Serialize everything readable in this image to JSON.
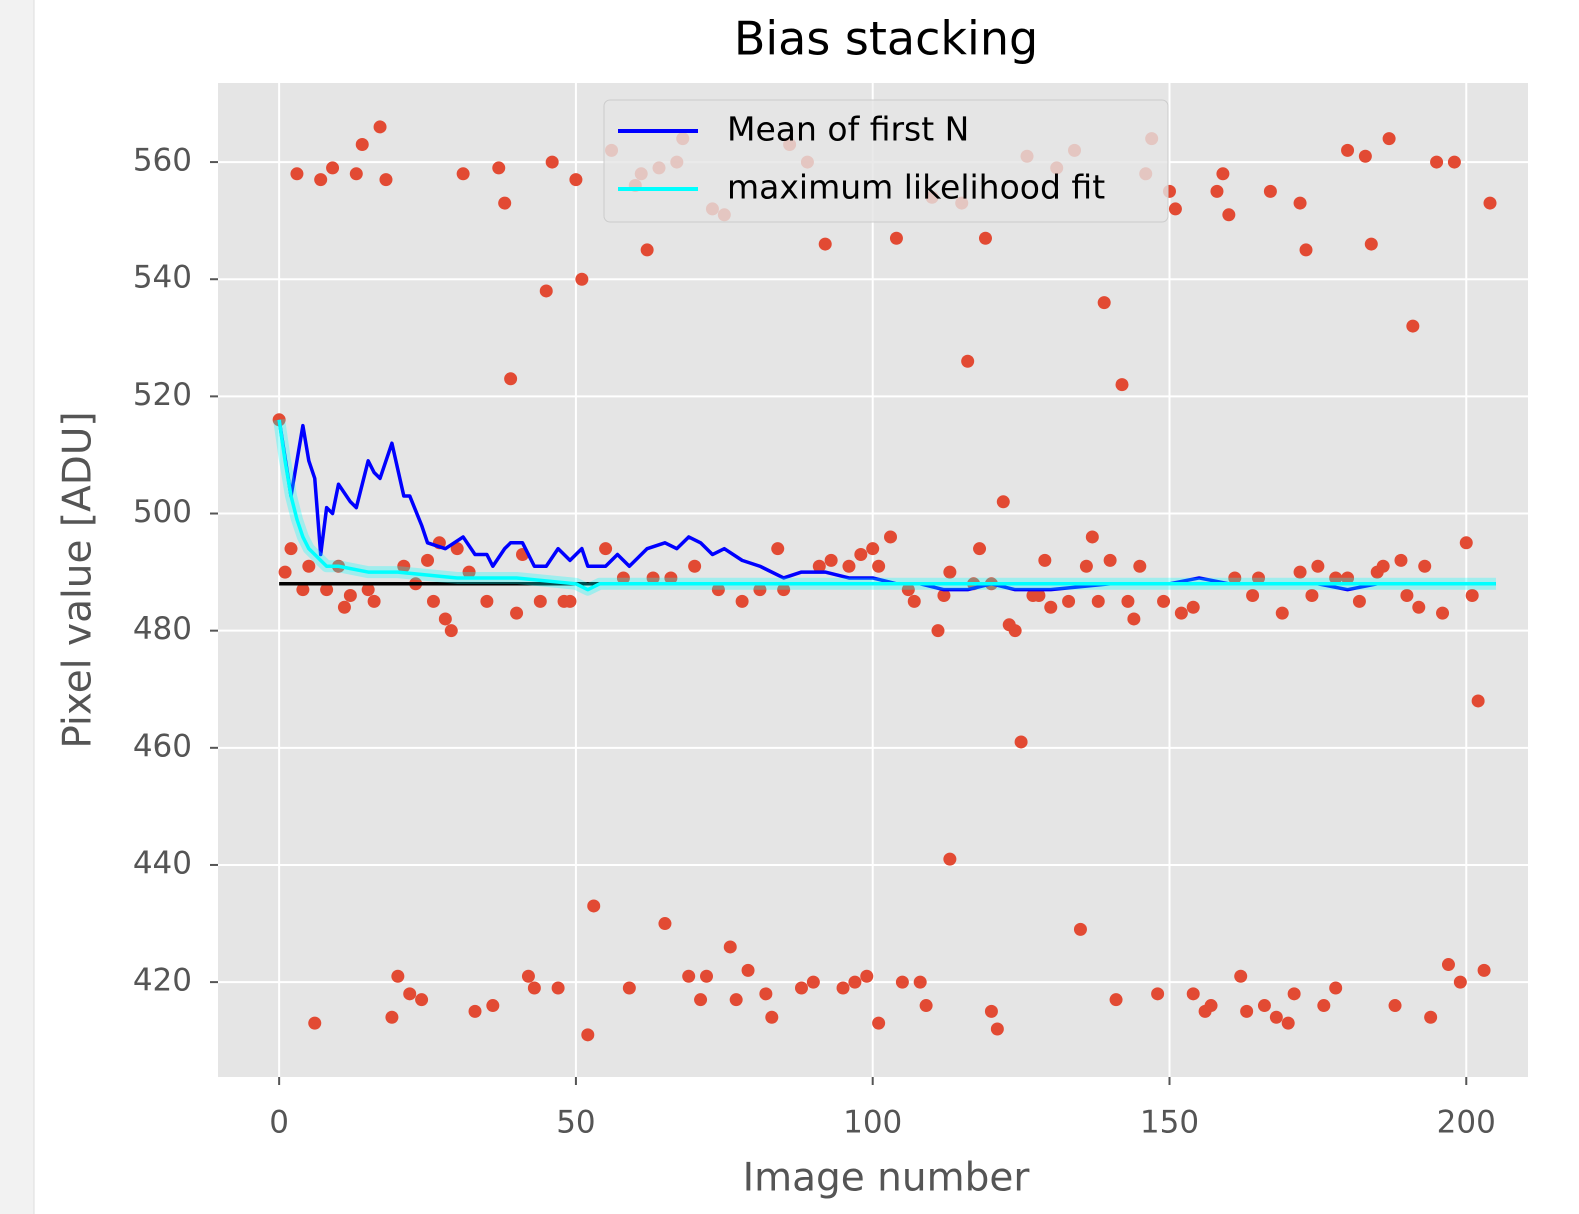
{
  "chart_data": {
    "type": "scatter",
    "title": "Bias stacking",
    "x_label": "Image number",
    "y_label": "Pixel value [ADU]",
    "xlim": [
      -10.3,
      210.4
    ],
    "ylim": [
      403.8,
      573.5
    ],
    "xticks": [
      0,
      50,
      100,
      150,
      200
    ],
    "yticks": [
      420,
      440,
      460,
      480,
      500,
      520,
      540,
      560
    ],
    "grid": true,
    "legend": "upper center",
    "series": [
      {
        "type": "scatter",
        "color": "#e24a33",
        "x": [
          3,
          7,
          9,
          13,
          14,
          17,
          18,
          31,
          37,
          38,
          39,
          45,
          46,
          50,
          51,
          56,
          60,
          61,
          62,
          64,
          67,
          68,
          73,
          75,
          86,
          89,
          92,
          104,
          110,
          115,
          116,
          119,
          126,
          131,
          134,
          139,
          142,
          146,
          147,
          150,
          151,
          158,
          159,
          160,
          167,
          172,
          173,
          180,
          183,
          184,
          187,
          191,
          195,
          198,
          204,
          0,
          1,
          2,
          4,
          5,
          8,
          10,
          11,
          12,
          15,
          16,
          21,
          23,
          25,
          26,
          27,
          28,
          29,
          30,
          32,
          35,
          40,
          41,
          44,
          48,
          49,
          55,
          58,
          63,
          66,
          70,
          74,
          78,
          81,
          84,
          85,
          91,
          93,
          96,
          98,
          100,
          101,
          103,
          106,
          107,
          111,
          112,
          113,
          117,
          118,
          120,
          122,
          123,
          124,
          127,
          128,
          129,
          130,
          133,
          136,
          137,
          138,
          140,
          143,
          144,
          145,
          149,
          152,
          154,
          161,
          164,
          165,
          169,
          172,
          175,
          174,
          178,
          180,
          182,
          185,
          186,
          189,
          190,
          192,
          193,
          196,
          200,
          201,
          202,
          125,
          113,
          135,
          53,
          65,
          6,
          19,
          20,
          22,
          24,
          33,
          36,
          42,
          43,
          47,
          52,
          59,
          69,
          71,
          72,
          76,
          77,
          79,
          82,
          83,
          88,
          90,
          95,
          97,
          99,
          101,
          105,
          108,
          109,
          120,
          121,
          141,
          148,
          154,
          156,
          157,
          162,
          163,
          166,
          168,
          170,
          171,
          176,
          178,
          188,
          194,
          197,
          199,
          203
        ],
        "values": [
          558,
          557,
          559,
          558,
          563,
          566,
          557,
          558,
          559,
          553,
          523,
          538,
          560,
          557,
          540,
          562,
          556,
          558,
          545,
          559,
          560,
          564,
          552,
          551,
          563,
          560,
          546,
          547,
          554,
          553,
          526,
          547,
          561,
          559,
          562,
          536,
          522,
          558,
          564,
          555,
          552,
          555,
          558,
          551,
          555,
          553,
          545,
          562,
          561,
          546,
          564,
          532,
          560,
          560,
          553,
          516,
          490,
          494,
          487,
          491,
          487,
          491,
          484,
          486,
          487,
          485,
          491,
          488,
          492,
          485,
          495,
          482,
          480,
          494,
          490,
          485,
          483,
          493,
          485,
          485,
          485,
          494,
          489,
          489,
          489,
          491,
          487,
          485,
          487,
          494,
          487,
          491,
          492,
          491,
          493,
          494,
          491,
          496,
          487,
          485,
          480,
          486,
          490,
          488,
          494,
          488,
          502,
          481,
          480,
          486,
          486,
          492,
          484,
          485,
          491,
          496,
          485,
          492,
          485,
          482,
          491,
          485,
          483,
          484,
          489,
          486,
          489,
          483,
          490,
          491,
          486,
          489,
          489,
          485,
          490,
          491,
          492,
          486,
          484,
          491,
          483,
          495,
          486,
          468,
          461,
          441,
          429,
          433,
          430,
          413,
          414,
          421,
          418,
          417,
          415,
          416,
          421,
          419,
          419,
          411,
          419,
          421,
          417,
          421,
          426,
          417,
          422,
          418,
          414,
          419,
          420,
          419,
          420,
          421,
          413,
          420,
          420,
          416,
          415,
          412,
          417,
          418,
          418,
          415,
          416,
          421,
          415,
          416,
          414,
          413,
          418,
          416,
          419,
          416,
          414,
          423,
          420,
          422
        ]
      },
      {
        "type": "line",
        "color": "#000000",
        "x": [
          0,
          205
        ],
        "values": [
          488,
          488
        ]
      },
      {
        "type": "line",
        "name": "Mean of first N",
        "color": "#0000ff",
        "x": [
          0,
          2,
          4,
          5,
          6,
          7,
          8,
          9,
          10,
          12,
          13,
          15,
          16,
          17,
          19,
          21,
          22,
          24,
          25,
          28,
          31,
          33,
          35,
          36,
          38,
          39,
          41,
          43,
          45,
          47,
          49,
          51,
          52,
          55,
          57,
          59,
          62,
          65,
          67,
          69,
          71,
          73,
          75,
          78,
          81,
          85,
          88,
          92,
          96,
          100,
          104,
          108,
          112,
          116,
          120,
          124,
          130,
          140,
          150,
          155,
          160,
          165,
          170,
          175,
          180,
          185,
          190,
          195,
          200,
          205
        ],
        "values": [
          516,
          503,
          515,
          509,
          506,
          493,
          501,
          500,
          505,
          502,
          501,
          509,
          507,
          506,
          512,
          503,
          503,
          498,
          495,
          494,
          496,
          493,
          493,
          491,
          494,
          495,
          495,
          491,
          491,
          494,
          492,
          494,
          491,
          491,
          493,
          491,
          494,
          495,
          494,
          496,
          495,
          493,
          494,
          492,
          491,
          489,
          490,
          490,
          489,
          489,
          488,
          488,
          487,
          487,
          488,
          487,
          487,
          488,
          488,
          489,
          488,
          488,
          488,
          488,
          487,
          488,
          488,
          488,
          488,
          488
        ]
      },
      {
        "type": "line",
        "name": "maximum likelihood fit",
        "color": "#00ffff",
        "x": [
          0,
          1,
          2,
          3,
          4,
          5,
          6,
          8,
          10,
          15,
          20,
          30,
          40,
          50,
          52,
          54,
          60,
          80,
          100,
          120,
          150,
          205
        ],
        "values": [
          516,
          509,
          503,
          499,
          496,
          494,
          493,
          491,
          491,
          490,
          490,
          489,
          489,
          488,
          487,
          488,
          488,
          488,
          488,
          488,
          488,
          488
        ]
      }
    ]
  }
}
